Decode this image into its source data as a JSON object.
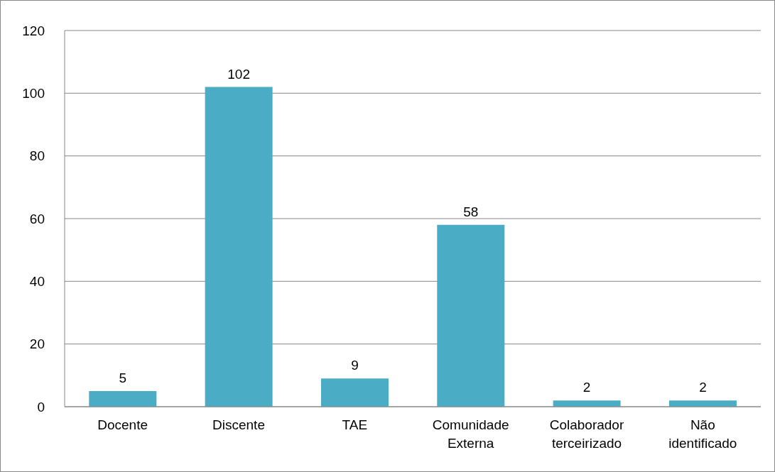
{
  "chart_data": {
    "type": "bar",
    "categories": [
      "Docente",
      "Discente",
      "TAE",
      "Comunidade Externa",
      "Colaborador terceirizado",
      "Não identificado"
    ],
    "values": [
      5,
      102,
      9,
      58,
      2,
      2
    ],
    "color": "#4bacc6",
    "ylim": [
      0,
      120
    ],
    "yticks": [
      0,
      20,
      40,
      60,
      80,
      100,
      120
    ],
    "grid": "y",
    "data_labels": true
  }
}
